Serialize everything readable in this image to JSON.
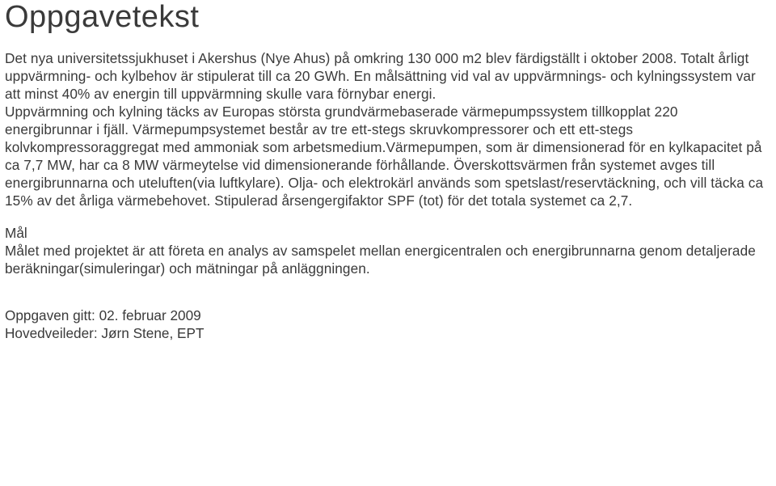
{
  "title": "Oppgavetekst",
  "para1": "Det nya universitetssjukhuset i Akershus (Nye Ahus) på omkring 130 000 m2 blev färdigställt i oktober 2008. Totalt årligt uppvärmning- och kylbehov är stipulerat till ca 20 GWh. En målsättning vid val av uppvärmnings- och kylningssystem var att minst 40% av energin till uppvärmning skulle vara förnybar energi.",
  "para2": "Uppvärmning och kylning täcks av Europas största grundvärmebaserade värmepumpssystem tillkopplat 220 energibrunnar i fjäll. Värmepumpsystemet består av tre ett-stegs skruvkompressorer och ett ett-stegs kolvkompressoraggregat med ammoniak som arbetsmedium.Värmepumpen, som är dimensionerad för en kylkapacitet på ca 7,7 MW, har ca 8 MW värmeytelse vid dimensionerande förhållande. Överskottsvärmen från systemet avges till energibrunnarna och uteluften(via luftkylare). Olja- och elektrokärl används som spetslast/reservtäckning, och vill täcka ca 15% av det årliga värmebehovet. Stipulerad årsengergifaktor SPF (tot) för det totala systemet ca 2,7.",
  "goal_label": "Mål",
  "goal_text": "Målet med projektet är att företa en analys av samspelet mellan energicentralen och energibrunnarna genom detaljerade beräkningar(simuleringar) och mätningar på anläggningen.",
  "footer_line1": "Oppgaven gitt: 02. februar 2009",
  "footer_line2": "Hovedveileder: Jørn Stene, EPT"
}
